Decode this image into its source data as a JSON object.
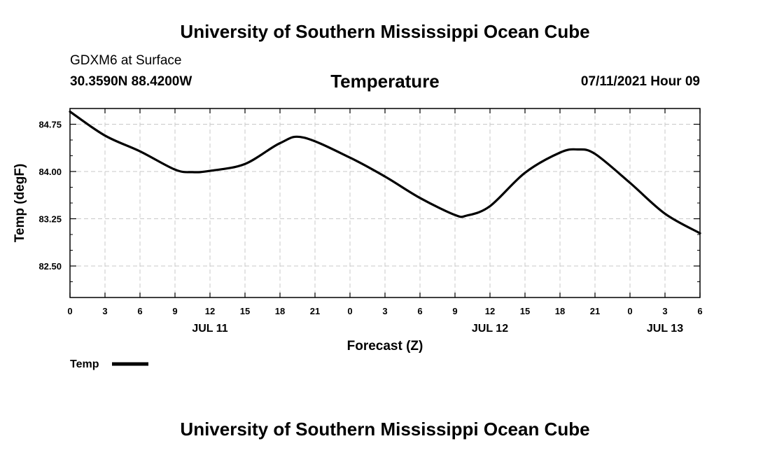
{
  "header": {
    "title": "University of Southern Mississippi Ocean Cube",
    "station": "GDXM6 at Surface",
    "coordinates": "30.3590N  88.4200W",
    "datetime": "07/11/2021 Hour 09"
  },
  "footer": {
    "title": "University of Southern Mississippi Ocean Cube"
  },
  "chart_data": {
    "type": "line",
    "title": "Temperature",
    "xlabel": "Forecast (Z)",
    "ylabel": "Temp (degF)",
    "xlim": [
      0,
      54
    ],
    "ylim": [
      82.0,
      85.0
    ],
    "grid": true,
    "x_tick_labels": [
      "0",
      "3",
      "6",
      "9",
      "12",
      "15",
      "18",
      "21",
      "0",
      "3",
      "6",
      "9",
      "12",
      "15",
      "18",
      "21",
      "0",
      "3",
      "6"
    ],
    "x_tick_values": [
      0,
      3,
      6,
      9,
      12,
      15,
      18,
      21,
      24,
      27,
      30,
      33,
      36,
      39,
      42,
      45,
      48,
      51,
      54
    ],
    "day_labels": [
      {
        "label": "JUL 11",
        "x": 12
      },
      {
        "label": "JUL 12",
        "x": 36
      },
      {
        "label": "JUL 13",
        "x": 51
      }
    ],
    "y_ticks": [
      82.5,
      83.25,
      84.0,
      84.75
    ],
    "y_tick_labels": [
      "82.50",
      "83.25",
      "84.00",
      "84.75"
    ],
    "legend": [
      {
        "name": "Temp",
        "position": "bottom-left"
      }
    ],
    "series": [
      {
        "name": "Temp",
        "x": [
          0,
          3,
          6,
          9,
          10.5,
          12,
          15,
          18,
          20,
          24,
          27,
          30,
          33,
          34,
          36,
          39,
          42,
          43.5,
          45,
          48,
          51,
          54
        ],
        "y": [
          84.95,
          84.57,
          84.32,
          84.03,
          83.99,
          84.01,
          84.12,
          84.45,
          84.54,
          84.22,
          83.92,
          83.58,
          83.31,
          83.3,
          83.45,
          83.98,
          84.3,
          84.35,
          84.28,
          83.82,
          83.33,
          83.02
        ]
      }
    ]
  }
}
